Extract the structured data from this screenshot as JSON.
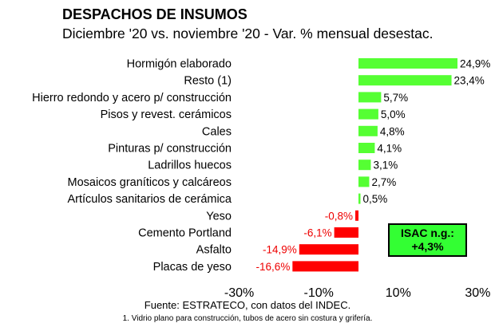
{
  "header": {
    "title": "DESPACHOS DE INSUMOS",
    "subtitle": "Diciembre '20 vs. noviembre '20 - Var. % mensual desestac."
  },
  "source": "Fuente: ESTRATECO, con datos del INDEC.",
  "footnote": "1. Vidrio plano para construcción, tubos de acero sin costura y grifería.",
  "isac": {
    "label": "ISAC n.g.:",
    "value": "+4,3%"
  },
  "colors": {
    "positive": "#55ff33",
    "negative": "#ff0000",
    "negative_label": "#ee0000",
    "isac_box": "#33ff33"
  },
  "chart_data": {
    "type": "bar",
    "orientation": "horizontal",
    "categories": [
      "Hormigón elaborado",
      "Resto (1)",
      "Hierro redondo y acero p/ construcción",
      "Pisos y revest. cerámicos",
      "Cales",
      "Pinturas p/ construcción",
      "Ladrillos huecos",
      "Mosaicos graníticos y calcáreos",
      "Artículos sanitarios de cerámica",
      "Yeso",
      "Cemento Portland",
      "Asfalto",
      "Placas de yeso"
    ],
    "values": [
      24.9,
      23.4,
      5.7,
      5.0,
      4.8,
      4.1,
      3.1,
      2.7,
      0.5,
      -0.8,
      -6.1,
      -14.9,
      -16.6
    ],
    "value_labels": [
      "24,9%",
      "23,4%",
      "5,7%",
      "5,0%",
      "4,8%",
      "4,1%",
      "3,1%",
      "2,7%",
      "0,5%",
      "-0,8%",
      "-6,1%",
      "-14,9%",
      "-16,6%"
    ],
    "xlim": [
      -30,
      30
    ],
    "ticks": [
      -30,
      -10,
      10,
      30
    ],
    "tick_labels": [
      "-30%",
      "-10%",
      "10%",
      "30%"
    ],
    "grid": false,
    "legend": "none"
  }
}
